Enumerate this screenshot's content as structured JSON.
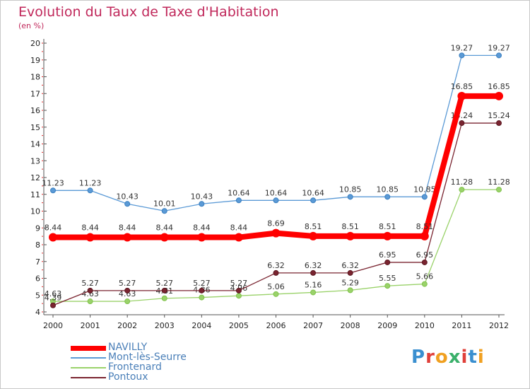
{
  "header": {
    "title": "Evolution du Taux de Taxe d'Habitation",
    "unit": "(en %)"
  },
  "logo": {
    "text": "Proxiti"
  },
  "chart_data": {
    "type": "line",
    "title": "Evolution du Taux de Taxe d'Habitation",
    "ylabel": "(en %)",
    "x": [
      "2000",
      "2001",
      "2002",
      "2003",
      "2004",
      "2005",
      "2006",
      "2007",
      "2008",
      "2009",
      "2010",
      "2011",
      "2012"
    ],
    "yticks": [
      "4",
      "5",
      "6",
      "7",
      "8",
      "9",
      "10",
      "11",
      "12",
      "13",
      "14",
      "15",
      "16",
      "17",
      "18",
      "19",
      "20"
    ],
    "ylim": [
      4,
      20
    ],
    "grid": false,
    "legend_position": "bottom-left",
    "series": [
      {
        "name": "Mont-lès-Seurre",
        "color": "#5b9ad6",
        "marker": "#3a7fc0",
        "values": [
          11.23,
          11.23,
          10.43,
          10.01,
          10.43,
          10.64,
          10.64,
          10.64,
          10.85,
          10.85,
          10.85,
          19.27,
          19.27
        ],
        "labels": [
          "11.23",
          "11.23",
          "10.43",
          "10.01",
          "10.43",
          "10.64",
          "10.64",
          "10.64",
          "10.85",
          "10.85",
          "10.85",
          "19.27",
          "19.27"
        ]
      },
      {
        "name": "Frontenard",
        "color": "#9ad26a",
        "marker": "#7fc24a",
        "values": [
          4.63,
          4.63,
          4.63,
          4.81,
          4.86,
          4.96,
          5.06,
          5.16,
          5.29,
          5.55,
          5.66,
          11.28,
          11.28
        ],
        "labels": [
          "4.63",
          "4.63",
          "4.63",
          "4.81",
          "4.86",
          "4.96",
          "5.06",
          "5.16",
          "5.29",
          "5.55",
          "5.66",
          "11.28",
          "11.28"
        ]
      },
      {
        "name": "Pontoux",
        "color": "#7a2430",
        "marker": "#5a1820",
        "values": [
          4.39,
          5.27,
          5.27,
          5.27,
          5.27,
          5.27,
          6.32,
          6.32,
          6.32,
          6.95,
          6.95,
          15.24,
          15.24
        ],
        "labels": [
          "4.39",
          "5.27",
          "5.27",
          "5.27",
          "5.27",
          "5.27",
          "6.32",
          "6.32",
          "6.32",
          "6.95",
          "6.95",
          "15.24",
          "15.24"
        ]
      },
      {
        "name": "NAVILLY",
        "color": "#ff0000",
        "marker": "#ff0000",
        "values": [
          8.44,
          8.44,
          8.44,
          8.44,
          8.44,
          8.44,
          8.69,
          8.51,
          8.51,
          8.51,
          8.51,
          16.85,
          16.85
        ],
        "labels": [
          "8.44",
          "8.44",
          "8.44",
          "8.44",
          "8.44",
          "8.44",
          "8.69",
          "8.51",
          "8.51",
          "8.51",
          "8.51",
          "16.85",
          "16.85"
        ]
      }
    ]
  },
  "legend": [
    {
      "name": "NAVILLY",
      "color": "#ff0000"
    },
    {
      "name": "Mont-lès-Seurre",
      "color": "#5b9ad6"
    },
    {
      "name": "Frontenard",
      "color": "#9ad26a"
    },
    {
      "name": "Pontoux",
      "color": "#7a2430"
    }
  ]
}
